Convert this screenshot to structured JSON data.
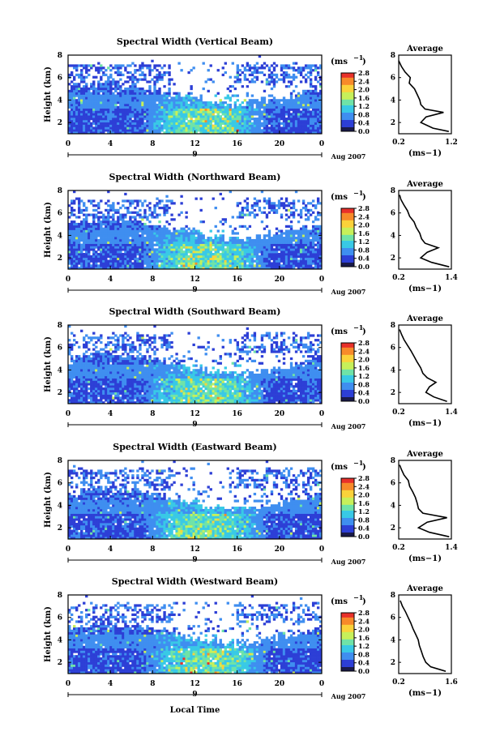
{
  "figure": {
    "shared_xlabel": "Local Time",
    "date_label": "Aug 2007",
    "ylabel": "Height (km)",
    "unit_label": "(ms",
    "unit_exp": "−1",
    "avg_title": "Average",
    "day_marker": "9",
    "time_ticks": [
      "0",
      "4",
      "8",
      "12",
      "16",
      "20",
      "0"
    ],
    "height_ticks": [
      "2",
      "4",
      "6",
      "8"
    ],
    "colorbar_ticks": [
      "0.0",
      "0.4",
      "0.8",
      "1.2",
      "1.6",
      "2.0",
      "2.4",
      "2.8"
    ],
    "colormap": [
      "#1a1a4a",
      "#2d3fd6",
      "#3f8ef0",
      "#39c9e6",
      "#6fe3a8",
      "#c7f05a",
      "#fbd23a",
      "#f78a2a",
      "#e8302a"
    ]
  },
  "chart_data": [
    {
      "type": "heatmap",
      "title": "Spectral Width (Vertical Beam)",
      "xlabel": "Local Time",
      "ylabel": "Height (km)",
      "xlim": [
        0,
        24
      ],
      "ylim": [
        1,
        8
      ],
      "colorbar_range": [
        0,
        2.8
      ],
      "avg_title": "Average",
      "avg_xlabel": "(ms−1)",
      "avg_xticks": [
        "0.2",
        "1.2"
      ],
      "avg_xlim": [
        0.2,
        1.2
      ],
      "avg_profile": {
        "height": [
          1.2,
          1.5,
          2.0,
          2.5,
          2.9,
          3.2,
          3.6,
          4.0,
          4.5,
          5.0,
          5.5,
          6.0,
          6.5,
          7.0,
          7.5
        ],
        "width": [
          1.15,
          0.85,
          0.62,
          0.72,
          1.05,
          0.7,
          0.62,
          0.6,
          0.55,
          0.5,
          0.4,
          0.42,
          0.32,
          0.25,
          0.2
        ]
      }
    },
    {
      "type": "heatmap",
      "title": "Spectral Width (Northward Beam)",
      "xlabel": "Local Time",
      "ylabel": "Height (km)",
      "xlim": [
        0,
        24
      ],
      "ylim": [
        1,
        8
      ],
      "colorbar_range": [
        0,
        2.8
      ],
      "avg_title": "Average",
      "avg_xlabel": "(ms−1)",
      "avg_xticks": [
        "0.2",
        "1.4"
      ],
      "avg_xlim": [
        0.2,
        1.4
      ],
      "avg_profile": {
        "height": [
          1.2,
          1.6,
          2.0,
          2.5,
          2.9,
          3.3,
          3.7,
          4.2,
          4.7,
          5.2,
          5.7,
          6.2,
          6.7,
          7.2,
          7.6
        ],
        "width": [
          1.35,
          0.95,
          0.7,
          0.85,
          1.1,
          0.8,
          0.72,
          0.68,
          0.6,
          0.55,
          0.45,
          0.4,
          0.32,
          0.25,
          0.22
        ]
      }
    },
    {
      "type": "heatmap",
      "title": "Spectral Width (Southward Beam)",
      "xlabel": "Local Time",
      "ylabel": "Height (km)",
      "xlim": [
        0,
        24
      ],
      "ylim": [
        1,
        8
      ],
      "colorbar_range": [
        0,
        2.8
      ],
      "avg_title": "Average",
      "avg_xlabel": "(ms−1)",
      "avg_xticks": [
        "0.2",
        "1.4"
      ],
      "avg_xlim": [
        0.2,
        1.4
      ],
      "avg_profile": {
        "height": [
          1.2,
          1.6,
          2.0,
          2.5,
          2.9,
          3.3,
          3.7,
          4.2,
          4.7,
          5.2,
          5.7,
          6.2,
          6.7,
          7.2,
          7.6
        ],
        "width": [
          1.3,
          1.0,
          0.82,
          0.9,
          1.05,
          0.85,
          0.75,
          0.7,
          0.62,
          0.55,
          0.48,
          0.4,
          0.32,
          0.26,
          0.22
        ]
      }
    },
    {
      "type": "heatmap",
      "title": "Spectral Width (Eastward Beam)",
      "xlabel": "Local Time",
      "ylabel": "Height (km)",
      "xlim": [
        0,
        24
      ],
      "ylim": [
        1,
        8
      ],
      "colorbar_range": [
        0,
        2.8
      ],
      "avg_title": "Average",
      "avg_xlabel": "(ms−1)",
      "avg_xticks": [
        "0.2",
        "1.4"
      ],
      "avg_xlim": [
        0.2,
        1.4
      ],
      "avg_profile": {
        "height": [
          1.2,
          1.6,
          2.0,
          2.5,
          2.9,
          3.3,
          3.7,
          4.2,
          4.7,
          5.2,
          5.7,
          6.2,
          6.7,
          7.2,
          7.6
        ],
        "width": [
          1.35,
          0.9,
          0.65,
          0.85,
          1.3,
          0.75,
          0.65,
          0.62,
          0.58,
          0.52,
          0.45,
          0.42,
          0.32,
          0.26,
          0.22
        ]
      }
    },
    {
      "type": "heatmap",
      "title": "Spectral Width (Westward Beam)",
      "xlabel": "Local Time",
      "ylabel": "Height (km)",
      "xlim": [
        0,
        24
      ],
      "ylim": [
        1,
        8
      ],
      "colorbar_range": [
        0,
        2.8
      ],
      "avg_title": "Average",
      "avg_xlabel": "(ms−1)",
      "avg_xticks": [
        "0.2",
        "1.6"
      ],
      "avg_xlim": [
        0.2,
        1.6
      ],
      "avg_profile": {
        "height": [
          1.2,
          1.6,
          2.0,
          2.5,
          3.0,
          3.5,
          4.0,
          4.5,
          5.0,
          5.5,
          6.0,
          6.5,
          7.0,
          7.5
        ],
        "width": [
          1.45,
          1.05,
          0.92,
          0.85,
          0.8,
          0.75,
          0.72,
          0.65,
          0.58,
          0.52,
          0.45,
          0.38,
          0.3,
          0.24
        ]
      }
    }
  ]
}
